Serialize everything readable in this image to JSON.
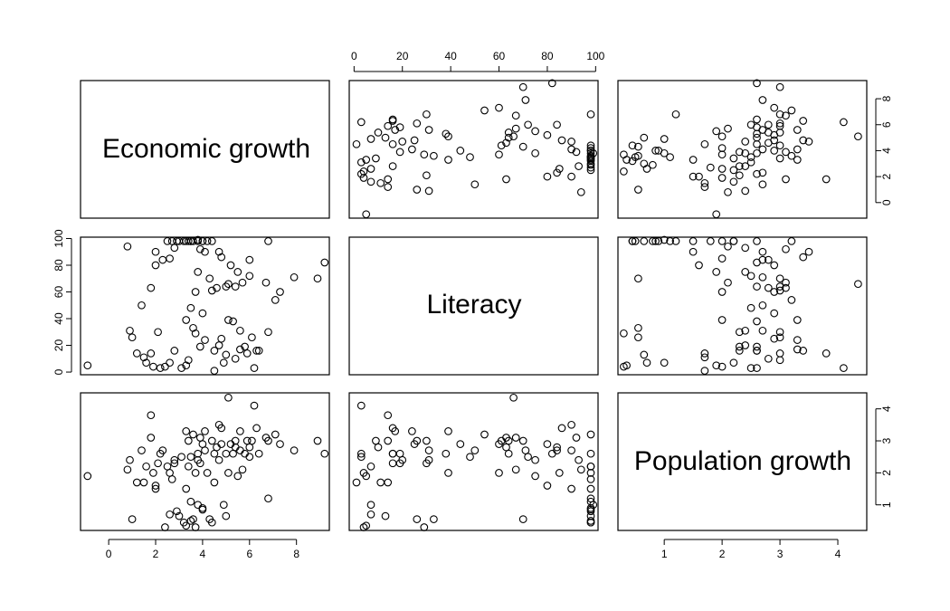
{
  "chart_data": {
    "type": "scatter",
    "layout": "pairs-matrix",
    "variables": [
      "Economic growth",
      "Literacy",
      "Population growth"
    ],
    "axes": {
      "Economic growth": {
        "range": [
          -1.2,
          9.4
        ],
        "ticks": [
          0,
          2,
          4,
          6,
          8
        ]
      },
      "Literacy": {
        "range": [
          -2,
          101
        ],
        "ticks": [
          0,
          20,
          40,
          60,
          80,
          100
        ]
      },
      "Population growth": {
        "range": [
          0.2,
          4.5
        ],
        "ticks": [
          1,
          2,
          3,
          4
        ]
      }
    },
    "observations": [
      {
        "growth": -0.9,
        "literacy": 5,
        "pop": 1.9
      },
      {
        "growth": 0.8,
        "literacy": 94,
        "pop": 2.1
      },
      {
        "growth": 0.9,
        "literacy": 31,
        "pop": 2.4
      },
      {
        "growth": 1.0,
        "literacy": 26,
        "pop": 0.55
      },
      {
        "growth": 1.2,
        "literacy": 14,
        "pop": 1.7
      },
      {
        "growth": 1.4,
        "literacy": 50,
        "pop": 2.7
      },
      {
        "growth": 1.5,
        "literacy": 11,
        "pop": 1.7
      },
      {
        "growth": 1.6,
        "literacy": 7,
        "pop": 2.2
      },
      {
        "growth": 1.8,
        "literacy": 14,
        "pop": 3.8
      },
      {
        "growth": 1.8,
        "literacy": 63,
        "pop": 3.1
      },
      {
        "growth": 1.9,
        "literacy": 4,
        "pop": 2.0
      },
      {
        "growth": 2.0,
        "literacy": 80,
        "pop": 1.6
      },
      {
        "growth": 2.0,
        "literacy": 90,
        "pop": 1.5
      },
      {
        "growth": 2.1,
        "literacy": 30,
        "pop": 2.3
      },
      {
        "growth": 2.2,
        "literacy": 3,
        "pop": 2.6
      },
      {
        "growth": 2.3,
        "literacy": 84,
        "pop": 2.7
      },
      {
        "growth": 2.4,
        "literacy": 4,
        "pop": 0.3
      },
      {
        "growth": 2.5,
        "literacy": 98,
        "pop": 2.2
      },
      {
        "growth": 2.6,
        "literacy": 85,
        "pop": 2.0
      },
      {
        "growth": 2.6,
        "literacy": 7,
        "pop": 0.7
      },
      {
        "growth": 2.7,
        "literacy": 98,
        "pop": 1.8
      },
      {
        "growth": 2.8,
        "literacy": 93,
        "pop": 2.4
      },
      {
        "growth": 2.8,
        "literacy": 16,
        "pop": 2.3
      },
      {
        "growth": 2.9,
        "literacy": 98,
        "pop": 0.8
      },
      {
        "growth": 3.1,
        "literacy": 3,
        "pop": 2.5
      },
      {
        "growth": 3.2,
        "literacy": 98,
        "pop": 0.45
      },
      {
        "growth": 3.3,
        "literacy": 98,
        "pop": 1.5
      },
      {
        "growth": 3.3,
        "literacy": 39,
        "pop": 3.3
      },
      {
        "growth": 3.3,
        "literacy": 5,
        "pop": 0.35
      },
      {
        "growth": 3.4,
        "literacy": 98,
        "pop": 2.2
      },
      {
        "growth": 3.4,
        "literacy": 9,
        "pop": 3.0
      },
      {
        "growth": 3.5,
        "literacy": 48,
        "pop": 2.5
      },
      {
        "growth": 3.5,
        "literacy": 98,
        "pop": 1.1
      },
      {
        "growth": 3.6,
        "literacy": 98,
        "pop": 3.2
      },
      {
        "growth": 3.6,
        "literacy": 33,
        "pop": 0.55
      },
      {
        "growth": 3.7,
        "literacy": 60,
        "pop": 2.0
      },
      {
        "growth": 3.7,
        "literacy": 29,
        "pop": 0.3
      },
      {
        "growth": 3.8,
        "literacy": 98,
        "pop": 2.6
      },
      {
        "growth": 3.8,
        "literacy": 75,
        "pop": 2.4
      },
      {
        "growth": 3.8,
        "literacy": 99,
        "pop": 1.0
      },
      {
        "growth": 3.9,
        "literacy": 92,
        "pop": 3.1
      },
      {
        "growth": 3.9,
        "literacy": 19,
        "pop": 2.3
      },
      {
        "growth": 4.0,
        "literacy": 98,
        "pop": 0.85
      },
      {
        "growth": 4.0,
        "literacy": 44,
        "pop": 2.9
      },
      {
        "growth": 4.1,
        "literacy": 24,
        "pop": 3.3
      },
      {
        "growth": 4.1,
        "literacy": 90,
        "pop": 2.7
      },
      {
        "growth": 4.2,
        "literacy": 98,
        "pop": 2.0
      },
      {
        "growth": 4.3,
        "literacy": 70,
        "pop": 0.55
      },
      {
        "growth": 4.4,
        "literacy": 61,
        "pop": 3.0
      },
      {
        "growth": 4.4,
        "literacy": 98,
        "pop": 0.45
      },
      {
        "growth": 4.5,
        "literacy": 16,
        "pop": 2.6
      },
      {
        "growth": 4.5,
        "literacy": 1,
        "pop": 1.7
      },
      {
        "growth": 4.6,
        "literacy": 63,
        "pop": 2.8
      },
      {
        "growth": 4.7,
        "literacy": 90,
        "pop": 3.5
      },
      {
        "growth": 4.7,
        "literacy": 20,
        "pop": 2.4
      },
      {
        "growth": 4.8,
        "literacy": 86,
        "pop": 3.4
      },
      {
        "growth": 4.8,
        "literacy": 25,
        "pop": 2.9
      },
      {
        "growth": 4.9,
        "literacy": 7,
        "pop": 1.0
      },
      {
        "growth": 5.0,
        "literacy": 64,
        "pop": 2.6
      },
      {
        "growth": 5.0,
        "literacy": 13,
        "pop": 0.65
      },
      {
        "growth": 5.1,
        "literacy": 66,
        "pop": 4.35
      },
      {
        "growth": 5.1,
        "literacy": 39,
        "pop": 2.0
      },
      {
        "growth": 5.2,
        "literacy": 80,
        "pop": 2.9
      },
      {
        "growth": 5.3,
        "literacy": 38,
        "pop": 2.6
      },
      {
        "growth": 5.4,
        "literacy": 10,
        "pop": 2.8
      },
      {
        "growth": 5.4,
        "literacy": 64,
        "pop": 3.0
      },
      {
        "growth": 5.5,
        "literacy": 75,
        "pop": 1.9
      },
      {
        "growth": 5.6,
        "literacy": 31,
        "pop": 2.7
      },
      {
        "growth": 5.6,
        "literacy": 17,
        "pop": 3.3
      },
      {
        "growth": 5.7,
        "literacy": 67,
        "pop": 2.1
      },
      {
        "growth": 5.8,
        "literacy": 19,
        "pop": 2.6
      },
      {
        "growth": 5.9,
        "literacy": 14,
        "pop": 3.0
      },
      {
        "growth": 6.0,
        "literacy": 84,
        "pop": 2.8
      },
      {
        "growth": 6.0,
        "literacy": 72,
        "pop": 2.5
      },
      {
        "growth": 6.1,
        "literacy": 26,
        "pop": 3.0
      },
      {
        "growth": 6.2,
        "literacy": 3,
        "pop": 4.1
      },
      {
        "growth": 6.3,
        "literacy": 16,
        "pop": 3.4
      },
      {
        "growth": 6.4,
        "literacy": 16,
        "pop": 2.6
      },
      {
        "growth": 6.7,
        "literacy": 67,
        "pop": 3.1
      },
      {
        "growth": 6.8,
        "literacy": 98,
        "pop": 1.2
      },
      {
        "growth": 6.8,
        "literacy": 30,
        "pop": 3.0
      },
      {
        "growth": 7.1,
        "literacy": 54,
        "pop": 3.2
      },
      {
        "growth": 7.3,
        "literacy": 60,
        "pop": 2.9
      },
      {
        "growth": 7.9,
        "literacy": 71,
        "pop": 2.7
      },
      {
        "growth": 8.9,
        "literacy": 70,
        "pop": 3.0
      },
      {
        "growth": 9.2,
        "literacy": 82,
        "pop": 2.6
      },
      {
        "growth": 4.0,
        "literacy": 98,
        "pop": 0.9
      },
      {
        "growth": 3.5,
        "literacy": 98,
        "pop": 0.5
      },
      {
        "growth": 3.0,
        "literacy": 98,
        "pop": 0.65
      }
    ]
  }
}
